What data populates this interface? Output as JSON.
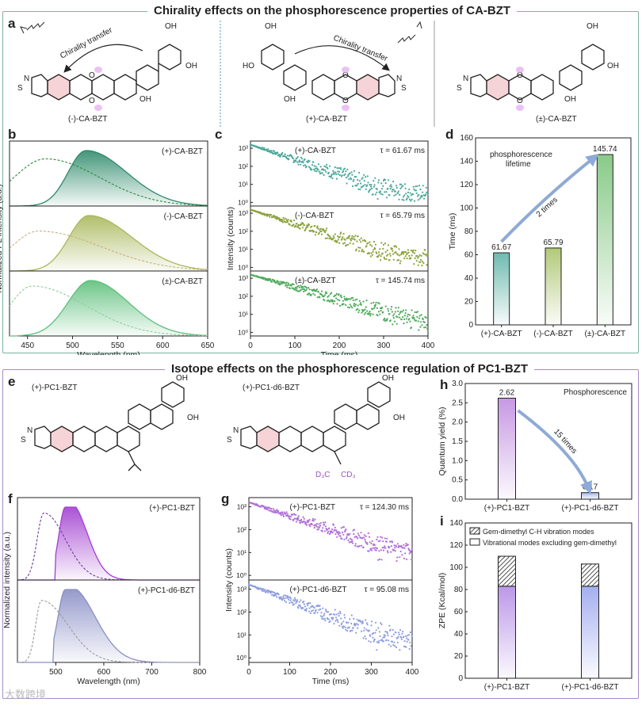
{
  "section1": {
    "title": "Chirality effects on the phosphorescence properties of CA-BZT",
    "panel_a": {
      "letter": "a",
      "mol_left": "(-)-CA-BZT",
      "mol_mid": "(+)-CA-BZT",
      "mol_right": "(±)-CA-BZT",
      "arrow_text": "Chirality transfer",
      "atoms": {
        "O": "O",
        "OH": "OH",
        "HO": "HO",
        "N": "N",
        "S": "S"
      }
    },
    "panel_b": {
      "letter": "b",
      "ylabel": "Normalized PL intensity (a.u.)",
      "xlabel": "Wavelength (nm)",
      "xticks": [
        "450",
        "500",
        "550",
        "600",
        "650"
      ],
      "labels": [
        "(+)-CA-BZT",
        "(-)-CA-BZT",
        "(±)-CA-BZT"
      ]
    },
    "panel_c": {
      "letter": "c",
      "ylabel": "Intensity (counts)",
      "xlabel": "Time (ms)",
      "xticks": [
        "0",
        "100",
        "200",
        "300",
        "400"
      ],
      "yticks": [
        "10⁰",
        "10¹",
        "10²",
        "10³"
      ],
      "rows": [
        {
          "name": "(+)-CA-BZT",
          "tau": "τ = 61.67 ms"
        },
        {
          "name": "(-)-CA-BZT",
          "tau": "τ = 65.79 ms"
        },
        {
          "name": "(±)-CA-BZT",
          "tau": "τ = 145.74 ms"
        }
      ]
    },
    "panel_d": {
      "letter": "d",
      "ylabel": "Time (ms)",
      "annotation": "phosphorescence",
      "annotation2": "lifetime",
      "arrow_text": "2 times"
    }
  },
  "section2": {
    "title": "Isotope effects on the phosphorescence regulation of PC1-BZT",
    "panel_e": {
      "letter": "e",
      "mol_left": "(+)-PC1-BZT",
      "mol_right": "(+)-PC1-d6-BZT",
      "cd3_left": "D₃C",
      "cd3_right": "CD₃"
    },
    "panel_f": {
      "letter": "f",
      "ylabel": "Normalized intensity (a.u.)",
      "xlabel": "Wavelength (nm)",
      "xticks": [
        "500",
        "600",
        "700",
        "800"
      ],
      "labels": [
        "(+)-PC1-BZT",
        "(+)-PC1-d6-BZT"
      ]
    },
    "panel_g": {
      "letter": "g",
      "ylabel": "Intensity (counts)",
      "xlabel": "Time (ms)",
      "xticks": [
        "0",
        "100",
        "200",
        "300",
        "400"
      ],
      "yticks": [
        "10⁰",
        "10¹",
        "10²",
        "10³"
      ],
      "rows": [
        {
          "name": "(+)-PC1-BZT",
          "tau": "τ = 124.30 ms"
        },
        {
          "name": "(+)-PC1-d6-BZT",
          "tau": "τ = 95.08 ms"
        }
      ]
    },
    "panel_h": {
      "letter": "h",
      "ylabel": "Quantum yield (%)",
      "legend": "Phosphorescence",
      "arrow_text": "15 times"
    },
    "panel_i": {
      "letter": "i",
      "ylabel": "ZPE (Kcal/mol)",
      "legend1": "Gem-dimethyl C-H vibration modes",
      "legend2": "Vibrational modes excluding gem-dimethyl"
    }
  },
  "watermark": "大数跨境",
  "chart_data": [
    {
      "type": "bar",
      "panel": "d",
      "categories": [
        "(+)-CA-BZT",
        "(-)-CA-BZT",
        "(±)-CA-BZT"
      ],
      "values": [
        61.67,
        65.79,
        145.74
      ],
      "value_labels": [
        "61.67",
        "65.79",
        "145.74"
      ],
      "ylabel": "Time (ms)",
      "ylim": [
        0,
        160
      ],
      "yticks": [
        "0",
        "20",
        "40",
        "60",
        "80",
        "100",
        "120",
        "140",
        "160"
      ],
      "colors": [
        "#5fb3a8",
        "#a9c36a",
        "#7cc47c"
      ]
    },
    {
      "type": "bar",
      "panel": "h",
      "categories": [
        "(+)-PC1-BZT",
        "(+)-PC1-d6-BZT"
      ],
      "values": [
        2.62,
        0.17
      ],
      "value_labels": [
        "2.62",
        "0.17"
      ],
      "ylabel": "Quantum yield (%)",
      "ylim": [
        0,
        3.0
      ],
      "yticks": [
        "0.0",
        "0.5",
        "1.0",
        "1.5",
        "2.0",
        "2.5",
        "3.0"
      ],
      "colors": [
        "#c08de0",
        "#9fb0e6"
      ]
    },
    {
      "type": "bar",
      "panel": "i",
      "stacked": true,
      "categories": [
        "(+)-PC1-BZT",
        "(+)-PC1-d6-BZT"
      ],
      "series": [
        {
          "name": "Vibrational modes excluding gem-dimethyl",
          "values": [
            83,
            83
          ]
        },
        {
          "name": "Gem-dimethyl C-H vibration modes",
          "values": [
            27,
            20
          ]
        }
      ],
      "ylabel": "ZPE (Kcal/mol)",
      "ylim": [
        0,
        140
      ],
      "yticks": [
        "0",
        "20",
        "40",
        "60",
        "80",
        "100",
        "120",
        "140"
      ],
      "colors": [
        "#b48ce6",
        "#9aa6ee"
      ]
    },
    {
      "type": "line",
      "panel": "b",
      "xlabel": "Wavelength (nm)",
      "xlim": [
        430,
        650
      ],
      "series": [
        {
          "name": "(+)-CA-BZT",
          "peak": 515
        },
        {
          "name": "(-)-CA-BZT",
          "peak": 518
        },
        {
          "name": "(±)-CA-BZT",
          "peak": 520
        }
      ]
    },
    {
      "type": "line",
      "panel": "f",
      "xlabel": "Wavelength (nm)",
      "xlim": [
        420,
        800
      ],
      "series": [
        {
          "name": "(+)-PC1-BZT",
          "peak": 520
        },
        {
          "name": "(+)-PC1-d6-BZT",
          "peak": 520
        }
      ]
    },
    {
      "type": "scatter",
      "panel": "c",
      "xlabel": "Time (ms)",
      "xlim": [
        0,
        400
      ],
      "series": [
        {
          "name": "(+)-CA-BZT",
          "tau": 61.67
        },
        {
          "name": "(-)-CA-BZT",
          "tau": 65.79
        },
        {
          "name": "(±)-CA-BZT",
          "tau": 145.74
        }
      ]
    },
    {
      "type": "scatter",
      "panel": "g",
      "xlabel": "Time (ms)",
      "xlim": [
        0,
        400
      ],
      "series": [
        {
          "name": "(+)-PC1-BZT",
          "tau": 124.3
        },
        {
          "name": "(+)-PC1-d6-BZT",
          "tau": 95.08
        }
      ]
    }
  ]
}
